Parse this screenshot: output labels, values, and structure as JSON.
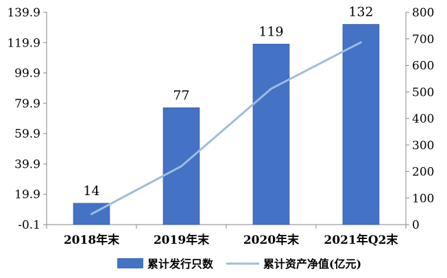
{
  "chart_data": {
    "type": "bar",
    "categories": [
      "2018年末",
      "2019年末",
      "2020年末",
      "2021年Q2末"
    ],
    "series": [
      {
        "name": "累计发行只数",
        "chart_type": "bar",
        "axis": "left",
        "color": "#4472C4",
        "values": [
          14,
          77,
          119,
          132
        ],
        "data_labels": [
          "14",
          "77",
          "119",
          "132"
        ]
      },
      {
        "name": "累计资产净值(亿元)",
        "chart_type": "line",
        "axis": "right",
        "color": "#9DBCDE",
        "values": [
          40,
          220,
          512,
          687
        ]
      }
    ],
    "y_left": {
      "ylim": [
        -0.1,
        139.9
      ],
      "ticks": [
        -0.1,
        19.9,
        39.9,
        59.9,
        79.9,
        99.9,
        119.9,
        139.9
      ],
      "tick_labels": [
        "-0.1",
        "19.9",
        "39.9",
        "59.9",
        "79.9",
        "99.9",
        "119.9",
        "139.9"
      ]
    },
    "y_right": {
      "ylim": [
        0,
        800
      ],
      "ticks": [
        0,
        100,
        200,
        300,
        400,
        500,
        600,
        700,
        800
      ],
      "tick_labels": [
        "0",
        "100",
        "200",
        "300",
        "400",
        "500",
        "600",
        "700",
        "800"
      ]
    },
    "grid": false,
    "legend": "bottom"
  }
}
